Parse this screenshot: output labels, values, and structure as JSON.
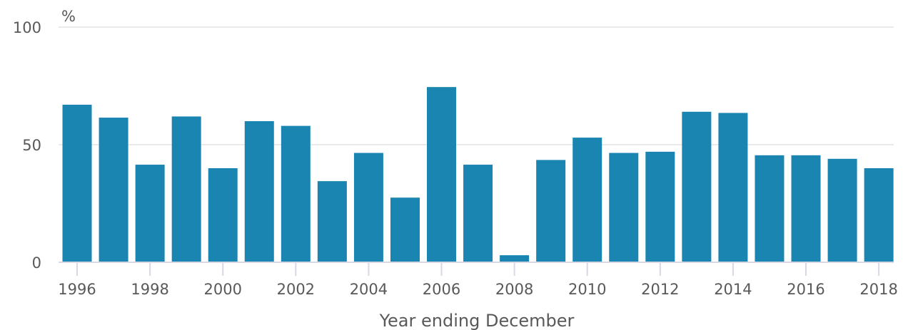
{
  "chart_data": {
    "type": "bar",
    "unit_label": "%",
    "xlabel": "Year ending December",
    "ylabel": "",
    "ylim": [
      0,
      100
    ],
    "yticks": [
      0,
      50,
      100
    ],
    "grid": true,
    "bar_color": "#1a85b0",
    "categories": [
      "1996",
      "1997",
      "1998",
      "1999",
      "2000",
      "2001",
      "2002",
      "2003",
      "2004",
      "2005",
      "2006",
      "2007",
      "2008",
      "2009",
      "2010",
      "2011",
      "2012",
      "2013",
      "2014",
      "2015",
      "2016",
      "2017",
      "2018"
    ],
    "values": [
      67,
      61.5,
      41.5,
      62,
      40,
      60,
      58,
      34.5,
      46.5,
      27.5,
      74.5,
      41.5,
      3,
      43.5,
      53,
      46.5,
      47,
      64,
      63.5,
      45.5,
      45.5,
      44,
      40
    ],
    "x_tick_labels": [
      "1996",
      "1998",
      "2000",
      "2002",
      "2004",
      "2006",
      "2008",
      "2010",
      "2012",
      "2014",
      "2016",
      "2018"
    ]
  }
}
